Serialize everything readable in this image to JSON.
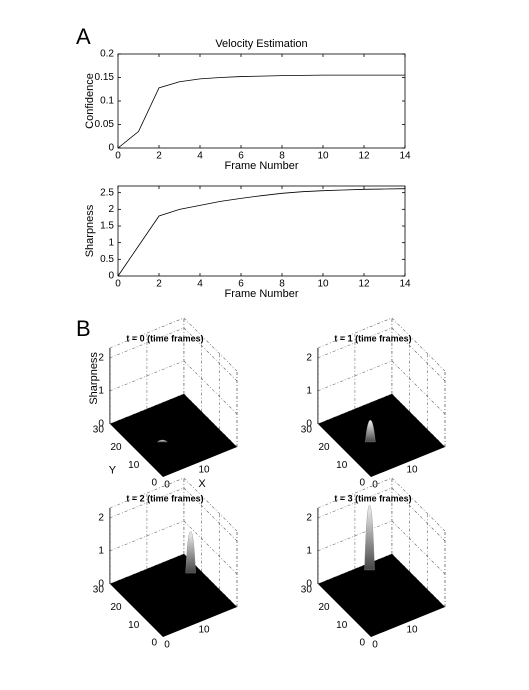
{
  "panel_labels": [
    "A",
    "B"
  ],
  "chart_data": [
    {
      "type": "line",
      "title": "Velocity Estimation",
      "xlabel": "Frame Number",
      "ylabel": "Confidence",
      "x": [
        0,
        1,
        2,
        3,
        4,
        5,
        6,
        7,
        8,
        9,
        10,
        11,
        12,
        13,
        14
      ],
      "values": [
        0,
        0.035,
        0.128,
        0.141,
        0.147,
        0.15,
        0.152,
        0.153,
        0.154,
        0.1545,
        0.155,
        0.155,
        0.155,
        0.155,
        0.155
      ],
      "color": "#000000",
      "xlim": [
        0,
        14
      ],
      "xticks": [
        0,
        2,
        4,
        6,
        8,
        10,
        12,
        14
      ],
      "ylim": [
        0,
        0.2
      ],
      "yticks": [
        0,
        0.05,
        0.1,
        0.15,
        0.2
      ]
    },
    {
      "type": "line",
      "xlabel": "Frame Number",
      "ylabel": "Sharpness",
      "x": [
        0,
        1,
        2,
        3,
        4,
        5,
        6,
        7,
        8,
        9,
        10,
        11,
        12,
        13,
        14
      ],
      "values": [
        0,
        0.9,
        1.8,
        2.0,
        2.12,
        2.24,
        2.33,
        2.41,
        2.48,
        2.53,
        2.56,
        2.58,
        2.6,
        2.61,
        2.62
      ],
      "color": "#000000",
      "xlim": [
        0,
        14
      ],
      "xticks": [
        0,
        2,
        4,
        6,
        8,
        10,
        12,
        14
      ],
      "ylim": [
        0,
        2.7
      ],
      "yticks": [
        0,
        0.5,
        1,
        1.5,
        2,
        2.5
      ]
    },
    {
      "type": "surface3d",
      "title": "t = 0 (time frames)",
      "zlabel": "Sharpness",
      "ylabel": "Y",
      "xlabel": "X",
      "xlim": [
        0,
        20
      ],
      "xticks": [
        0,
        10
      ],
      "ylim": [
        0,
        30
      ],
      "yticks": [
        0,
        10,
        20,
        30
      ],
      "zlim": [
        0,
        2.3
      ],
      "zticks": [
        0,
        1,
        2
      ],
      "peak": {
        "x": 7,
        "y": 15,
        "z": 0
      }
    },
    {
      "type": "surface3d",
      "title": "t = 1 (time frames)",
      "xlim": [
        0,
        20
      ],
      "xticks": [
        0,
        10
      ],
      "ylim": [
        0,
        30
      ],
      "yticks": [
        0,
        10,
        20,
        30
      ],
      "zlim": [
        0,
        2.3
      ],
      "zticks": [
        0,
        1,
        2
      ],
      "peak": {
        "x": 7,
        "y": 15,
        "z": 0.6
      }
    },
    {
      "type": "surface3d",
      "title": "t = 2 (time frames)",
      "xlim": [
        0,
        20
      ],
      "xticks": [
        0,
        10
      ],
      "ylim": [
        0,
        30
      ],
      "yticks": [
        0,
        10,
        20,
        30
      ],
      "zlim": [
        0,
        2.3
      ],
      "zticks": [
        0,
        1,
        2
      ],
      "peak": {
        "x": 18,
        "y": 22,
        "z": 1.2
      }
    },
    {
      "type": "surface3d",
      "title": "t = 3 (time frames)",
      "xlim": [
        0,
        20
      ],
      "xticks": [
        0,
        10
      ],
      "ylim": [
        0,
        30
      ],
      "yticks": [
        0,
        10,
        20,
        30
      ],
      "zlim": [
        0,
        2.3
      ],
      "zticks": [
        0,
        1,
        2
      ],
      "peak": {
        "x": 13,
        "y": 28,
        "z": 1.9
      }
    }
  ]
}
